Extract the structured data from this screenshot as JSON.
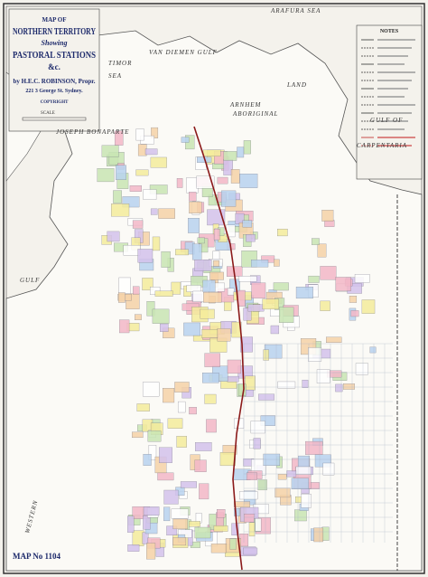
{
  "title": {
    "line1": "MAP OF",
    "line2": "NORTHERN TERRITORY",
    "line3": "Showing",
    "line4": "PASTORAL STATIONS",
    "line5": "&c.",
    "author": "by H.E.C. ROBINSON, Propr.",
    "address": "221 3 George St. Sydney.",
    "copyright": "COPYRIGHT"
  },
  "scale_label": "SCALE",
  "labels": {
    "arafura": "ARAFURA SEA",
    "timor": "TIMOR",
    "timor_sea": "SEA",
    "van_diemen": "VAN DIEMEN GULF",
    "arnhem": "ARNHEM",
    "aboriginal": "ABORIGINAL",
    "land": "LAND",
    "gulf_of": "GULF OF",
    "carpentaria": "CARPENTARIA",
    "bonaparte": "JOSEPH BONAPARTE",
    "gulf": "GULF",
    "western": "WESTERN"
  },
  "legend": {
    "title": "NOTES"
  },
  "map_number": "MAP No 1104"
}
